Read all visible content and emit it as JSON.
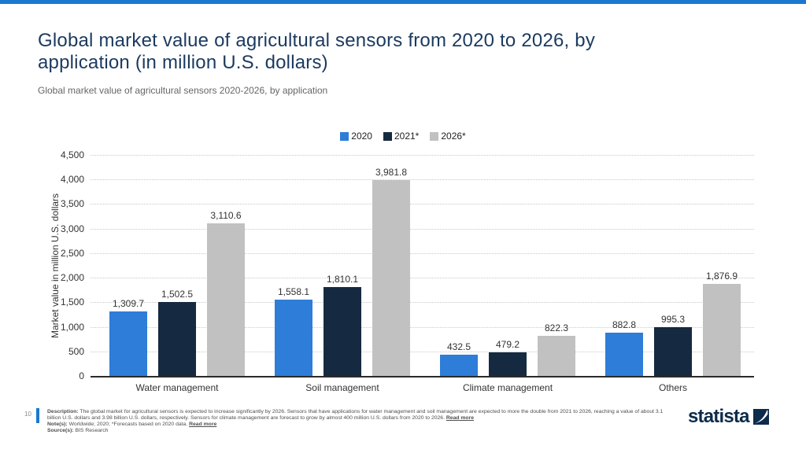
{
  "page": {
    "title": "Global market value of agricultural sensors from 2020 to 2026, by application (in million U.S. dollars)",
    "subtitle": "Global market value of agricultural sensors 2020-2026, by application",
    "page_number": "10"
  },
  "colors": {
    "accent_blue": "#1a78cf",
    "title_navy": "#1b3a5f",
    "logo_navy": "#0d2b4b",
    "axis_line": "#2b2b2b",
    "gridline": "#c9c9c9",
    "label_text": "#333333",
    "subtitle_gray": "#666666"
  },
  "chart_data": {
    "type": "bar",
    "title": "Global market value of agricultural sensors from 2020 to 2026, by application (in million U.S. dollars)",
    "categories": [
      "Water management",
      "Soil management",
      "Climate management",
      "Others"
    ],
    "series": [
      {
        "name": "2020",
        "color": "#2e7dd8",
        "values": [
          1309.7,
          1558.1,
          432.5,
          882.8
        ]
      },
      {
        "name": "2021*",
        "color": "#152a40",
        "values": [
          1502.5,
          1810.1,
          479.2,
          995.3
        ]
      },
      {
        "name": "2026*",
        "color": "#c1c1c1",
        "values": [
          3110.6,
          3981.8,
          822.3,
          1876.9
        ]
      }
    ],
    "xlabel": "",
    "ylabel": "Market value in million U.S. dollars",
    "ylim": [
      0,
      4500
    ],
    "ytick_step": 500,
    "grid": "horizontal-dotted",
    "legend_position": "top-center",
    "value_labels": true
  },
  "footer": {
    "description_label": "Description:",
    "description_text": "The global market for agricultural sensors is expected to increase significantly by 2026. Sensors that have applications for water management and soil management are expected to more the double from 2021 to 2026, reaching a value of about 3.1 billion U.S. dollars and 3.98 billion U.S. dollars, respectively. Sensors for climate management are forecast to grow by almost 400 million U.S. dollars from 2020 to 2026.",
    "description_read_more": "Read more",
    "notes_label": "Note(s):",
    "notes_text": "Worldwide; 2020; *Forecasts based on 2020 data.",
    "notes_read_more": "Read more",
    "source_label": "Source(s):",
    "source_text": "BIS Research",
    "logo_text": "statista"
  }
}
